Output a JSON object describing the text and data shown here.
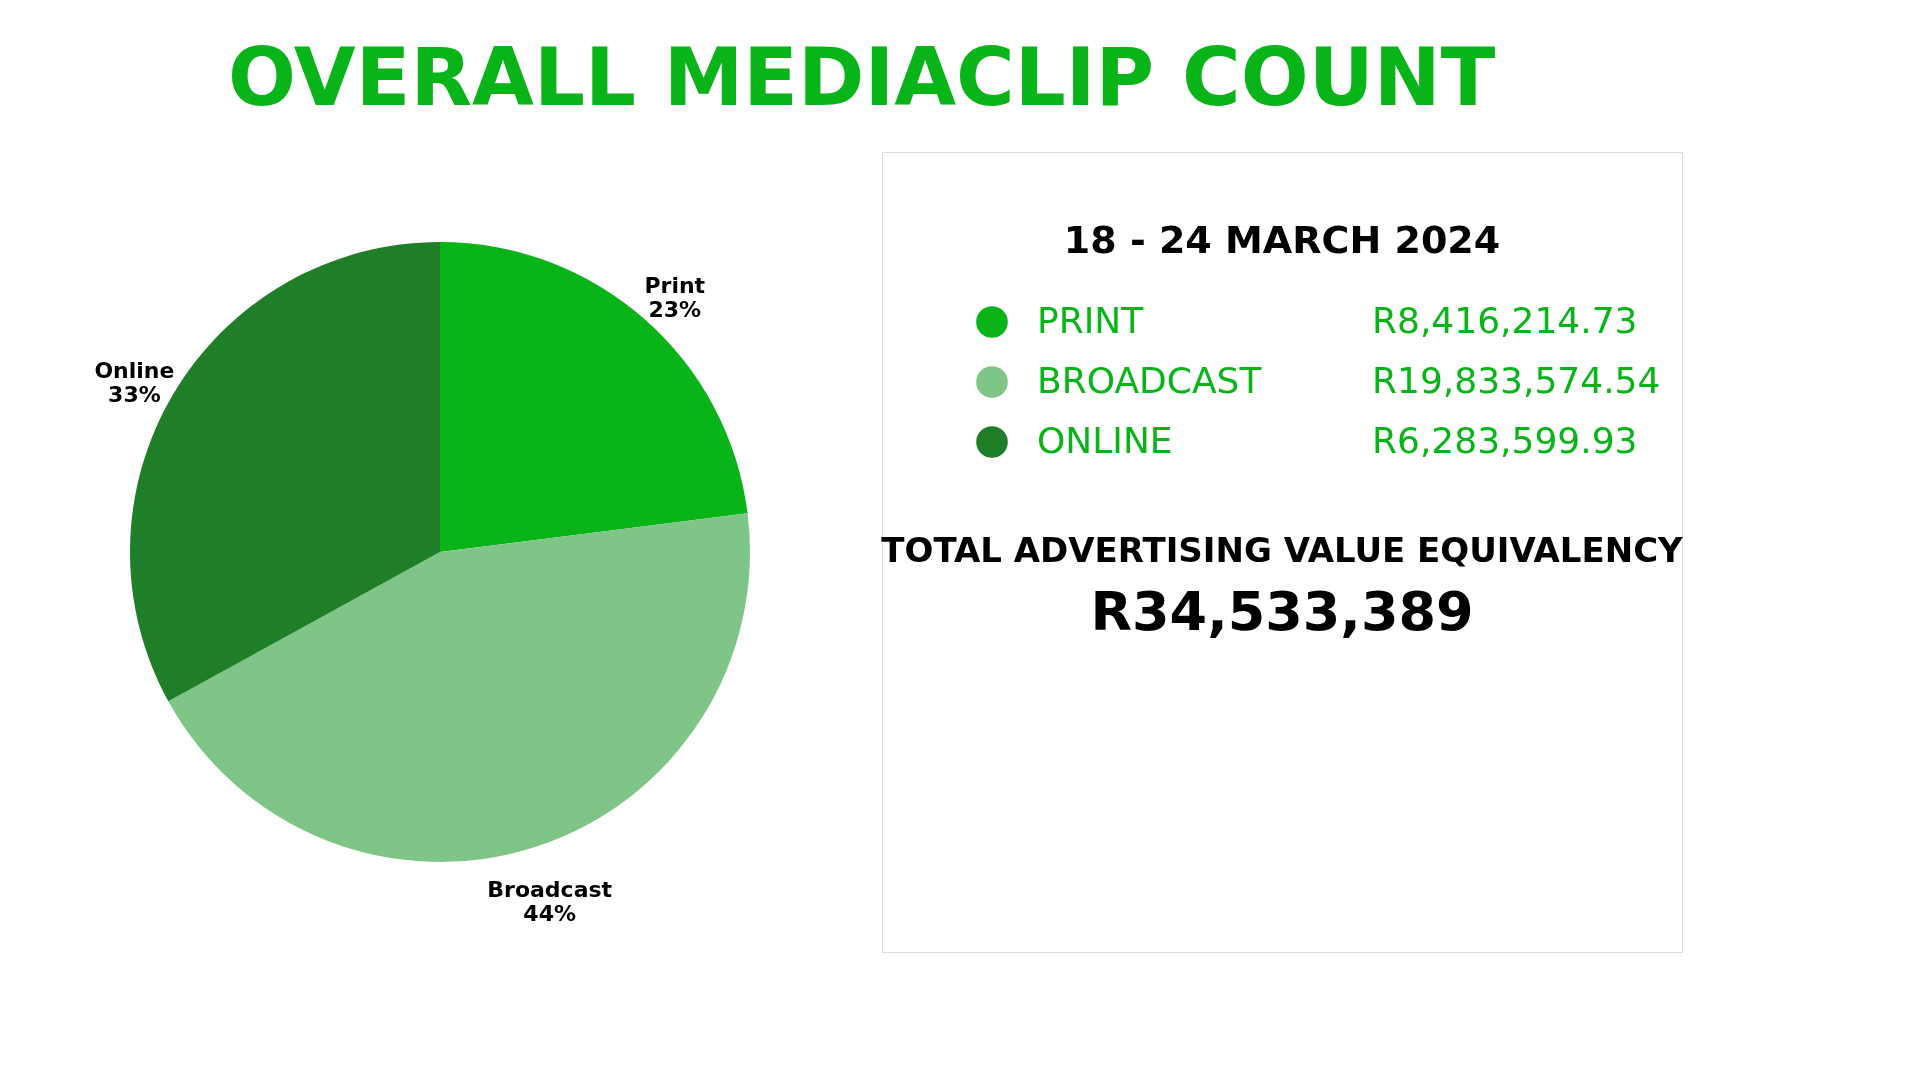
{
  "chart_data": [
    {
      "type": "pie",
      "title": "OVERALL MEDIACLIP COUNT",
      "categories": [
        "Print",
        "Broadcast",
        "Online"
      ],
      "values": [
        23,
        44,
        33
      ],
      "colors": [
        "#08b418",
        "#80c588",
        "#1f7e28"
      ],
      "value_labels": [
        "23%",
        "44%",
        "33%"
      ],
      "legend": false
    },
    {
      "type": "other",
      "title": "18 - 24 MARCH 2024",
      "categories": [
        "PRINT",
        "BROADCAST",
        "ONLINE"
      ],
      "values": [
        8416214.73,
        19833574.54,
        6283599.93
      ],
      "colors": [
        "#08b418",
        "#80c588",
        "#1f7e28"
      ],
      "value_labels": [
        "R8,416,214.73",
        "R19,833,574.54",
        "R6,283,599.93"
      ],
      "annotations": [
        "TOTAL ADVERTISING VALUE EQUIVALENCY",
        "R34,533,389"
      ]
    }
  ]
}
